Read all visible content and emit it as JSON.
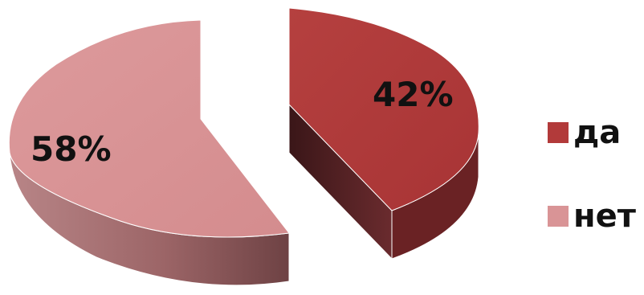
{
  "chart_data": {
    "type": "pie",
    "variant": "3d-exploded",
    "slices": [
      {
        "label": "да",
        "value": 42,
        "display": "42%",
        "color": "#b23a3a"
      },
      {
        "label": "нет",
        "value": 58,
        "display": "58%",
        "color": "#d99496"
      }
    ],
    "legend": {
      "position": "right",
      "items": [
        {
          "label": "да",
          "color": "#b23a3a"
        },
        {
          "label": "нет",
          "color": "#d99496"
        }
      ]
    }
  }
}
